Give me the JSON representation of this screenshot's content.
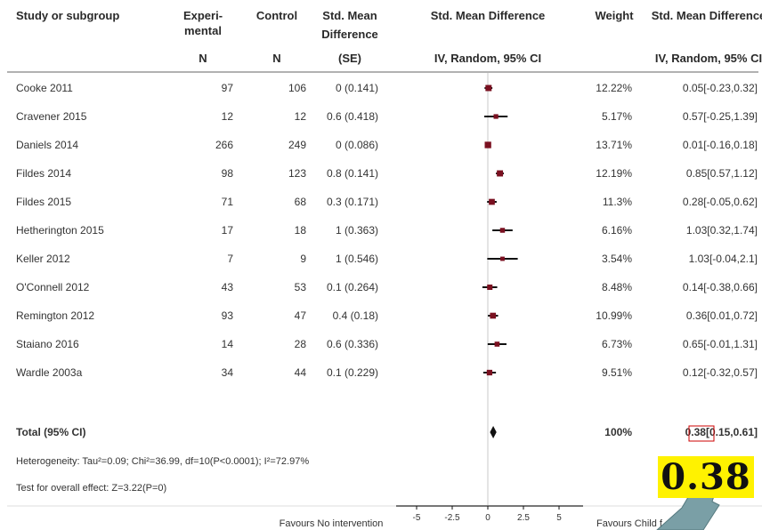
{
  "headers": {
    "study": "Study or subgroup",
    "exp_line1": "Experi-",
    "exp_line2": "mental",
    "exp_n": "N",
    "control": "Control",
    "control_n": "N",
    "smd_line1": "Std. Mean",
    "smd_line2": "Difference",
    "smd_se": "(SE)",
    "forest_title": "Std. Mean Difference",
    "forest_sub": "IV, Random, 95% CI",
    "weight": "Weight",
    "ci_title": "Std. Mean Difference",
    "ci_sub": "IV, Random, 95% CI"
  },
  "chart_data": {
    "type": "forest",
    "xlim": [
      -5,
      5
    ],
    "x_ticks": [
      "-5",
      "-2.5",
      "0",
      "2.5",
      "5"
    ],
    "x_tick_values": [
      -5,
      -2.5,
      0,
      2.5,
      5
    ],
    "studies": [
      {
        "name": "Cooke 2011",
        "exp_n": "97",
        "ctrl_n": "106",
        "smd_se": "0 (0.141)",
        "weight": "12.22%",
        "ci_text": "0.05[-0.23,0.32]",
        "est": 0.05,
        "lo": -0.23,
        "hi": 0.32
      },
      {
        "name": "Cravener 2015",
        "exp_n": "12",
        "ctrl_n": "12",
        "smd_se": "0.6 (0.418)",
        "weight": "5.17%",
        "ci_text": "0.57[-0.25,1.39]",
        "est": 0.57,
        "lo": -0.25,
        "hi": 1.39
      },
      {
        "name": "Daniels 2014",
        "exp_n": "266",
        "ctrl_n": "249",
        "smd_se": "0 (0.086)",
        "weight": "13.71%",
        "ci_text": "0.01[-0.16,0.18]",
        "est": 0.01,
        "lo": -0.16,
        "hi": 0.18
      },
      {
        "name": "Fildes 2014",
        "exp_n": "98",
        "ctrl_n": "123",
        "smd_se": "0.8 (0.141)",
        "weight": "12.19%",
        "ci_text": "0.85[0.57,1.12]",
        "est": 0.85,
        "lo": 0.57,
        "hi": 1.12
      },
      {
        "name": "Fildes 2015",
        "exp_n": "71",
        "ctrl_n": "68",
        "smd_se": "0.3 (0.171)",
        "weight": "11.3%",
        "ci_text": "0.28[-0.05,0.62]",
        "est": 0.28,
        "lo": -0.05,
        "hi": 0.62
      },
      {
        "name": "Hetherington 2015",
        "exp_n": "17",
        "ctrl_n": "18",
        "smd_se": "1 (0.363)",
        "weight": "6.16%",
        "ci_text": "1.03[0.32,1.74]",
        "est": 1.03,
        "lo": 0.32,
        "hi": 1.74
      },
      {
        "name": "Keller 2012",
        "exp_n": "7",
        "ctrl_n": "9",
        "smd_se": "1 (0.546)",
        "weight": "3.54%",
        "ci_text": "1.03[-0.04,2.1]",
        "est": 1.03,
        "lo": -0.04,
        "hi": 2.1
      },
      {
        "name": "O'Connell 2012",
        "exp_n": "43",
        "ctrl_n": "53",
        "smd_se": "0.1 (0.264)",
        "weight": "8.48%",
        "ci_text": "0.14[-0.38,0.66]",
        "est": 0.14,
        "lo": -0.38,
        "hi": 0.66
      },
      {
        "name": "Remington 2012",
        "exp_n": "93",
        "ctrl_n": "47",
        "smd_se": "0.4 (0.18)",
        "weight": "10.99%",
        "ci_text": "0.36[0.01,0.72]",
        "est": 0.36,
        "lo": 0.01,
        "hi": 0.72
      },
      {
        "name": "Staiano 2016",
        "exp_n": "14",
        "ctrl_n": "28",
        "smd_se": "0.6 (0.336)",
        "weight": "6.73%",
        "ci_text": "0.65[-0.01,1.31]",
        "est": 0.65,
        "lo": -0.01,
        "hi": 1.31
      },
      {
        "name": "Wardle 2003a",
        "exp_n": "34",
        "ctrl_n": "44",
        "smd_se": "0.1 (0.229)",
        "weight": "9.51%",
        "ci_text": "0.12[-0.32,0.57]",
        "est": 0.12,
        "lo": -0.32,
        "hi": 0.57
      }
    ],
    "total": {
      "label": "Total (95% CI)",
      "weight": "100%",
      "ci_text": "0.38[0.15,0.61]",
      "est": 0.38,
      "lo": 0.15,
      "hi": 0.61
    },
    "heterogeneity": "Heterogeneity: Tau²=0.09; Chi²=36.99, df=10(P<0.0001); I²=72.97%",
    "overall_effect": "Test for overall effect: Z=3.22(P=0)",
    "favours_left": "Favours No intervention",
    "favours_right": "Favours Child f",
    "colors": {
      "marker": "#7a1020",
      "line": "#111111",
      "callout_bg": "#fff200",
      "arrow": "#7a9fa6"
    }
  },
  "callout": {
    "value": "0.38"
  }
}
